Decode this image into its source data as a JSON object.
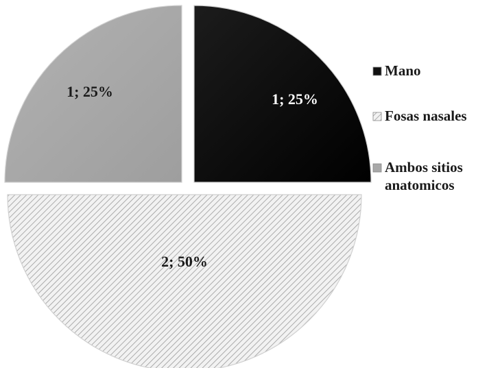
{
  "chart_data": {
    "type": "pie",
    "exploded": true,
    "title": "",
    "legend_position": "right",
    "slices": [
      {
        "name": "Mano",
        "value": 1,
        "label": "1; 25%",
        "color": "#000000",
        "pattern": "solid"
      },
      {
        "name": "Fosas nasales",
        "value": 2,
        "label": "2; 50%",
        "color": "#e6e6e6",
        "pattern": "diagonal-hatch"
      },
      {
        "name": "Ambos sitios anatomicos",
        "value": 1,
        "label": "1; 25%",
        "color": "#a8a8a8",
        "pattern": "solid"
      }
    ],
    "legend": [
      {
        "name": "Mano",
        "lines": [
          "Mano"
        ]
      },
      {
        "name": "Fosas nasales",
        "lines": [
          "Fosas nasales"
        ]
      },
      {
        "name": "Ambos sitios anatomicos",
        "lines": [
          "Ambos sitios",
          "anatomicos"
        ]
      }
    ]
  }
}
